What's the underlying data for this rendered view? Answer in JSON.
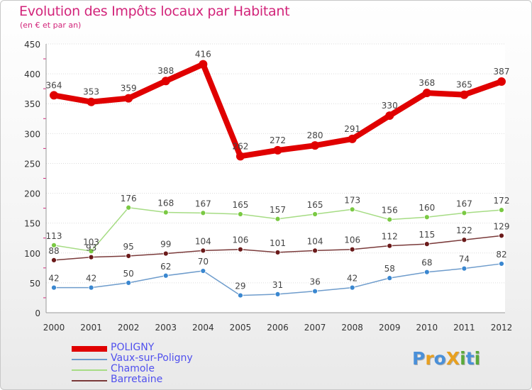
{
  "title": "Evolution des Impôts locaux par Habitant",
  "subtitle": "(en € et par an)",
  "logo": "Proxiti",
  "logo_letters": [
    {
      "char": "P",
      "color": "#4a90d9"
    },
    {
      "char": "r",
      "color": "#e8a020"
    },
    {
      "char": "o",
      "color": "#4a90d9"
    },
    {
      "char": "X",
      "color": "#e8a020"
    },
    {
      "char": "i",
      "color": "#5aaa3a"
    },
    {
      "char": "t",
      "color": "#4a90d9"
    },
    {
      "char": "i",
      "color": "#5aaa3a"
    }
  ],
  "chart_data": {
    "type": "line",
    "title": "Evolution des Impôts locaux par Habitant",
    "subtitle": "(en € et par an)",
    "xlabel": "",
    "ylabel": "",
    "ylim": [
      0,
      450
    ],
    "yticks": [
      0,
      50,
      100,
      150,
      200,
      250,
      300,
      350,
      400,
      450
    ],
    "grid": true,
    "x": [
      "2000",
      "2001",
      "2002",
      "2003",
      "2004",
      "2005",
      "2006",
      "2007",
      "2008",
      "2009",
      "2010",
      "2011",
      "2012"
    ],
    "series": [
      {
        "name": "POLIGNY",
        "color": "#e00000",
        "marker": "#e00000",
        "thick": true,
        "values": [
          364,
          353,
          359,
          388,
          416,
          262,
          272,
          280,
          291,
          330,
          368,
          365,
          387
        ],
        "labels": [
          "364",
          "353",
          "359",
          "388",
          "416",
          "262",
          "272",
          "280",
          "291",
          "330",
          "368",
          "365",
          "387"
        ]
      },
      {
        "name": "Vaux-sur-Poligny",
        "color": "#6e9ccc",
        "marker": "#3a87d0",
        "thick": false,
        "values": [
          42,
          42,
          50,
          62,
          70,
          29,
          31,
          36,
          42,
          58,
          68,
          74,
          82
        ],
        "labels": [
          "42",
          "42",
          "50",
          "62",
          "70",
          "29",
          "31",
          "36",
          "42",
          "58",
          "68",
          "74",
          "82"
        ]
      },
      {
        "name": "Chamole",
        "color": "#a6dc84",
        "marker": "#7ac943",
        "thick": false,
        "values": [
          113,
          103,
          176,
          168,
          167,
          165,
          157,
          165,
          173,
          156,
          160,
          167,
          172
        ],
        "labels": [
          "113",
          "103",
          "176",
          "168",
          "167",
          "165",
          "157",
          "165",
          "173",
          "156",
          "160",
          "167",
          "172"
        ]
      },
      {
        "name": "Barretaine",
        "color": "#7a3a3a",
        "marker": "#6b1a1a",
        "thick": false,
        "values": [
          88,
          93,
          95,
          99,
          104,
          106,
          101,
          104,
          106,
          112,
          115,
          122,
          129
        ],
        "labels": [
          "88",
          "93",
          "95",
          "99",
          "104",
          "106",
          "101",
          "104",
          "106",
          "112",
          "115",
          "122",
          "129"
        ]
      }
    ]
  }
}
